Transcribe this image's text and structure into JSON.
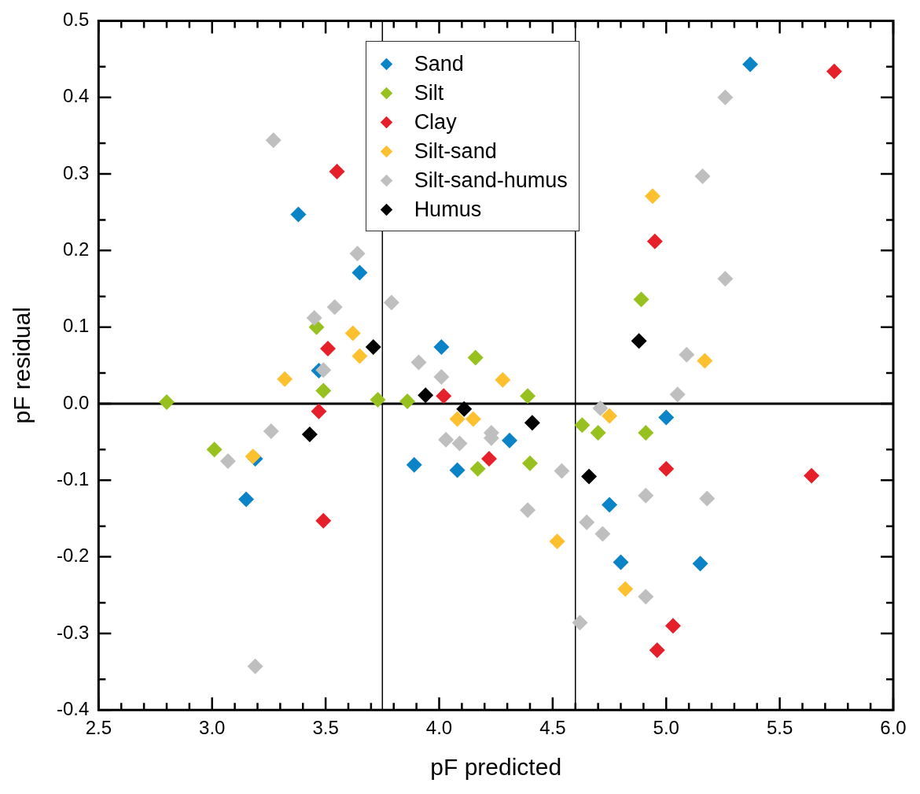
{
  "chart_data": {
    "type": "scatter",
    "xlabel": "pF predicted",
    "ylabel": "pF residual",
    "marker": "diamond",
    "legend": "top",
    "grid": false,
    "xlim": [
      2.5,
      6.0
    ],
    "xticks": [
      2.5,
      {
        "value": 3,
        "label": "3.0"
      },
      3.5,
      {
        "value": 4,
        "label": "4.0"
      },
      4.5,
      {
        "value": 5,
        "label": "5.0"
      },
      5.5,
      {
        "value": 6,
        "label": "6.0"
      }
    ],
    "ylim": [
      -0.4,
      0.5
    ],
    "yticks": [
      -0.4,
      -0.3,
      -0.2,
      -0.1,
      {
        "value": 0,
        "label": "0.0"
      },
      0.1,
      0.2,
      0.3,
      0.4,
      0.5
    ],
    "ref_lines": [
      {
        "axis": "y",
        "value": 0,
        "label": null,
        "color": "#000000"
      },
      {
        "axis": "x",
        "value": 3.75,
        "label": null,
        "color": "#000000"
      },
      {
        "axis": "x",
        "value": 4.6,
        "label": null,
        "color": "#000000"
      }
    ],
    "series": [
      {
        "name": "Sand",
        "color": "#0a84c6",
        "x": [
          5.37,
          3.38,
          3.65,
          4.01,
          3.47,
          3.19,
          3.15,
          3.89,
          4.08,
          4.31,
          5.0,
          4.75,
          4.8,
          5.15
        ],
        "values": [
          0.443,
          0.247,
          0.171,
          0.074,
          0.043,
          -0.072,
          -0.125,
          -0.08,
          -0.087,
          -0.048,
          -0.018,
          -0.132,
          -0.207,
          -0.209
        ]
      },
      {
        "name": "Silt",
        "color": "#96c11f",
        "x": [
          2.8,
          3.01,
          3.46,
          3.49,
          3.73,
          3.86,
          4.16,
          4.17,
          4.39,
          4.4,
          4.63,
          4.7,
          4.89,
          4.91
        ],
        "values": [
          0.002,
          -0.06,
          0.1,
          0.017,
          0.005,
          0.003,
          0.06,
          -0.085,
          0.01,
          -0.078,
          -0.028,
          -0.038,
          0.136,
          -0.038
        ]
      },
      {
        "name": "Clay",
        "color": "#e5202a",
        "x": [
          3.55,
          3.51,
          3.47,
          3.49,
          4.02,
          4.22,
          4.95,
          5.0,
          5.03,
          4.96,
          5.64,
          5.74
        ],
        "values": [
          0.303,
          0.072,
          -0.01,
          -0.153,
          0.01,
          -0.072,
          0.212,
          -0.085,
          -0.29,
          -0.322,
          -0.094,
          0.434
        ]
      },
      {
        "name": "Silt-sand",
        "color": "#fdc130",
        "x": [
          3.32,
          3.18,
          3.62,
          3.65,
          4.08,
          4.15,
          4.28,
          4.52,
          4.75,
          4.82,
          4.94,
          5.17
        ],
        "values": [
          0.032,
          -0.069,
          0.092,
          0.062,
          -0.02,
          -0.02,
          0.031,
          -0.18,
          -0.016,
          -0.242,
          0.271,
          0.056
        ]
      },
      {
        "name": "Silt-sand-humus",
        "color": "#bfbfbf",
        "x": [
          3.27,
          3.64,
          3.45,
          3.54,
          3.79,
          3.49,
          3.91,
          4.01,
          3.26,
          3.07,
          3.19,
          4.03,
          4.09,
          4.23,
          4.23,
          4.39,
          4.54,
          4.62,
          4.65,
          4.71,
          4.72,
          4.91,
          4.91,
          5.05,
          5.09,
          5.16,
          5.18,
          5.26,
          5.26
        ],
        "values": [
          0.344,
          0.196,
          0.112,
          0.126,
          0.132,
          0.044,
          0.054,
          0.035,
          -0.036,
          -0.075,
          -0.343,
          -0.047,
          -0.052,
          -0.038,
          -0.045,
          -0.139,
          -0.088,
          -0.286,
          -0.155,
          -0.006,
          -0.17,
          -0.12,
          -0.252,
          0.012,
          0.064,
          0.297,
          -0.124,
          0.163,
          0.4
        ]
      },
      {
        "name": "Humus",
        "color": "#000000",
        "x": [
          3.71,
          3.43,
          3.94,
          4.11,
          4.41,
          4.66,
          4.88
        ],
        "values": [
          0.074,
          -0.04,
          0.011,
          -0.007,
          -0.025,
          -0.095,
          0.082
        ]
      }
    ]
  }
}
